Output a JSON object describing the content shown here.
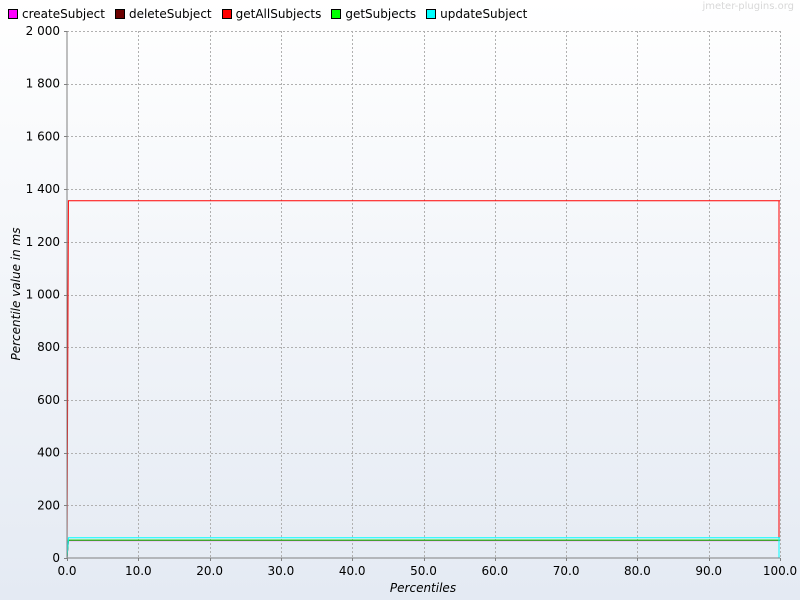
{
  "watermark": "jmeter-plugins.org",
  "chart_data": {
    "type": "line",
    "xlabel": "Percentiles",
    "ylabel": "Percentile value in ms",
    "xlim": [
      0,
      100
    ],
    "ylim": [
      0,
      2000
    ],
    "grid": true,
    "legend_position": "top-left",
    "x_ticks": [
      {
        "value": 0,
        "label": "0.0"
      },
      {
        "value": 10,
        "label": "10.0"
      },
      {
        "value": 20,
        "label": "20.0"
      },
      {
        "value": 30,
        "label": "30.0"
      },
      {
        "value": 40,
        "label": "40.0"
      },
      {
        "value": 50,
        "label": "50.0"
      },
      {
        "value": 60,
        "label": "60.0"
      },
      {
        "value": 70,
        "label": "70.0"
      },
      {
        "value": 80,
        "label": "80.0"
      },
      {
        "value": 90,
        "label": "90.0"
      },
      {
        "value": 100,
        "label": "100.0"
      }
    ],
    "y_ticks": [
      {
        "value": 0,
        "label": "0"
      },
      {
        "value": 200,
        "label": "200"
      },
      {
        "value": 400,
        "label": "400"
      },
      {
        "value": 600,
        "label": "600"
      },
      {
        "value": 800,
        "label": "800"
      },
      {
        "value": 1000,
        "label": "1 000"
      },
      {
        "value": 1200,
        "label": "1 200"
      },
      {
        "value": 1400,
        "label": "1 400"
      },
      {
        "value": 1600,
        "label": "1 600"
      },
      {
        "value": 1800,
        "label": "1 800"
      },
      {
        "value": 2000,
        "label": "2 000"
      }
    ],
    "series": [
      {
        "name": "createSubject",
        "color": "#ff00ff",
        "points": [
          [
            0,
            0
          ],
          [
            0.2,
            66
          ],
          [
            99.8,
            66
          ],
          [
            100,
            66
          ]
        ]
      },
      {
        "name": "deleteSubject",
        "color": "#6b0000",
        "points": [
          [
            0,
            0
          ],
          [
            0.2,
            67
          ],
          [
            99.8,
            67
          ],
          [
            100,
            67
          ]
        ]
      },
      {
        "name": "getAllSubjects",
        "color": "#ff0000",
        "points": [
          [
            0,
            0
          ],
          [
            0.2,
            1356
          ],
          [
            99.8,
            1356
          ],
          [
            100,
            1356
          ]
        ]
      },
      {
        "name": "getSubjects",
        "color": "#00ff00",
        "points": [
          [
            0,
            0
          ],
          [
            0.2,
            68
          ],
          [
            99.8,
            68
          ],
          [
            100,
            68
          ]
        ]
      },
      {
        "name": "updateSubject",
        "color": "#00ffff",
        "points": [
          [
            0,
            0
          ],
          [
            0.2,
            77
          ],
          [
            99.8,
            77
          ],
          [
            100,
            77
          ]
        ]
      }
    ]
  }
}
